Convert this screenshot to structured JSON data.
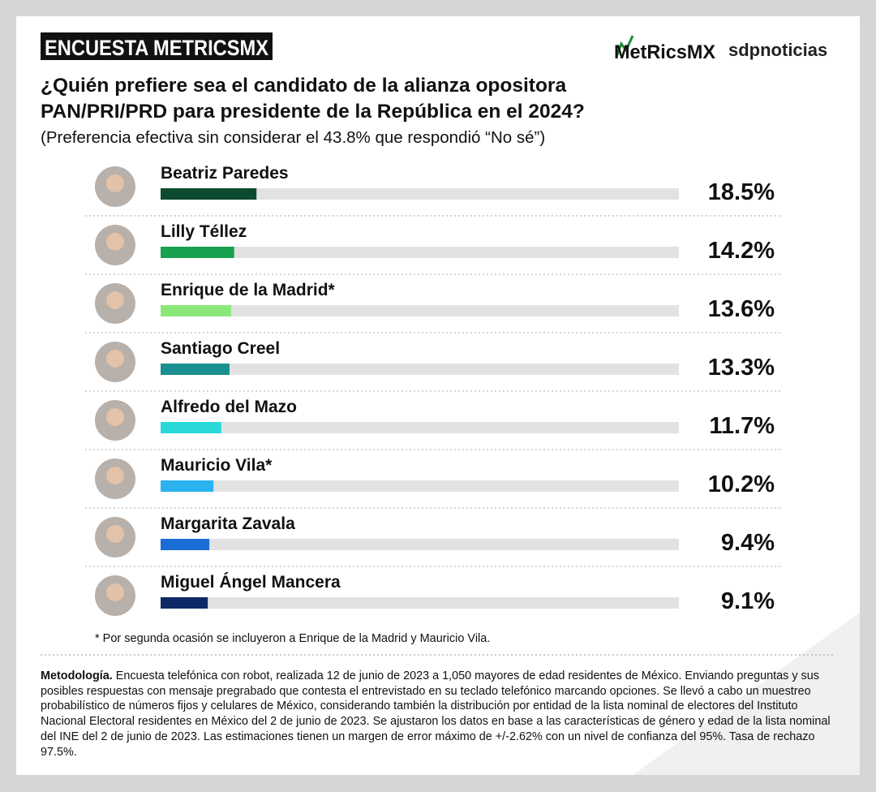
{
  "chart_data": {
    "type": "bar",
    "orientation": "horizontal",
    "badge": "ENCUESTA METRICSMX",
    "logo_left": "MetRicsMX",
    "logo_right": "sdpnoticias",
    "title": [
      "¿Quién prefiere sea el candidato de la alianza opositora",
      "PAN/PRI/PRD para presidente de la República en el 2024?"
    ],
    "subtitle": "(Preferencia efectiva sin considerar el 43.8% que respondió “No sé”)",
    "categories": [
      "Beatriz Paredes",
      "Lilly Téllez",
      "Enrique de la Madrid*",
      "Santiago Creel",
      "Alfredo del Mazo",
      "Mauricio Vila*",
      "Margarita Zavala",
      "Miguel Ángel Mancera"
    ],
    "values": [
      18.5,
      14.2,
      13.6,
      13.3,
      11.7,
      10.2,
      9.4,
      9.1
    ],
    "value_labels": [
      "18.5%",
      "14.2%",
      "13.6%",
      "13.3%",
      "11.7%",
      "10.2%",
      "9.4%",
      "9.1%"
    ],
    "colors": [
      "#0d4a2f",
      "#1aa150",
      "#8ae87a",
      "#1a8f8f",
      "#29d9d9",
      "#2ab3f0",
      "#1a6dd4",
      "#0d2a66"
    ],
    "xlim": [
      0,
      100
    ],
    "footnote": "* Por segunda ocasión se incluyeron a Enrique de la Madrid y Mauricio Vila.",
    "methodology_label": "Metodología.",
    "methodology": "Encuesta telefónica con robot, realizada 12 de junio de 2023 a 1,050 mayores de edad residentes de México. Enviando preguntas y sus posibles respuestas con mensaje pregrabado que contesta el entrevistado en su teclado telefónico marcando opciones. Se llevó a cabo un muestreo probabilístico de números fijos y celulares de México, considerando también la distribución por entidad de la lista nominal de electores del Instituto Nacional Electoral residentes en México del 2 de junio de 2023. Se ajustaron los datos en base a las características de género y edad de la lista nominal del INE del 2 de junio de 2023. Las estimaciones tienen un margen de error máximo de +/-2.62% con un nivel de confianza del 95%. Tasa de rechazo 97.5%."
  }
}
